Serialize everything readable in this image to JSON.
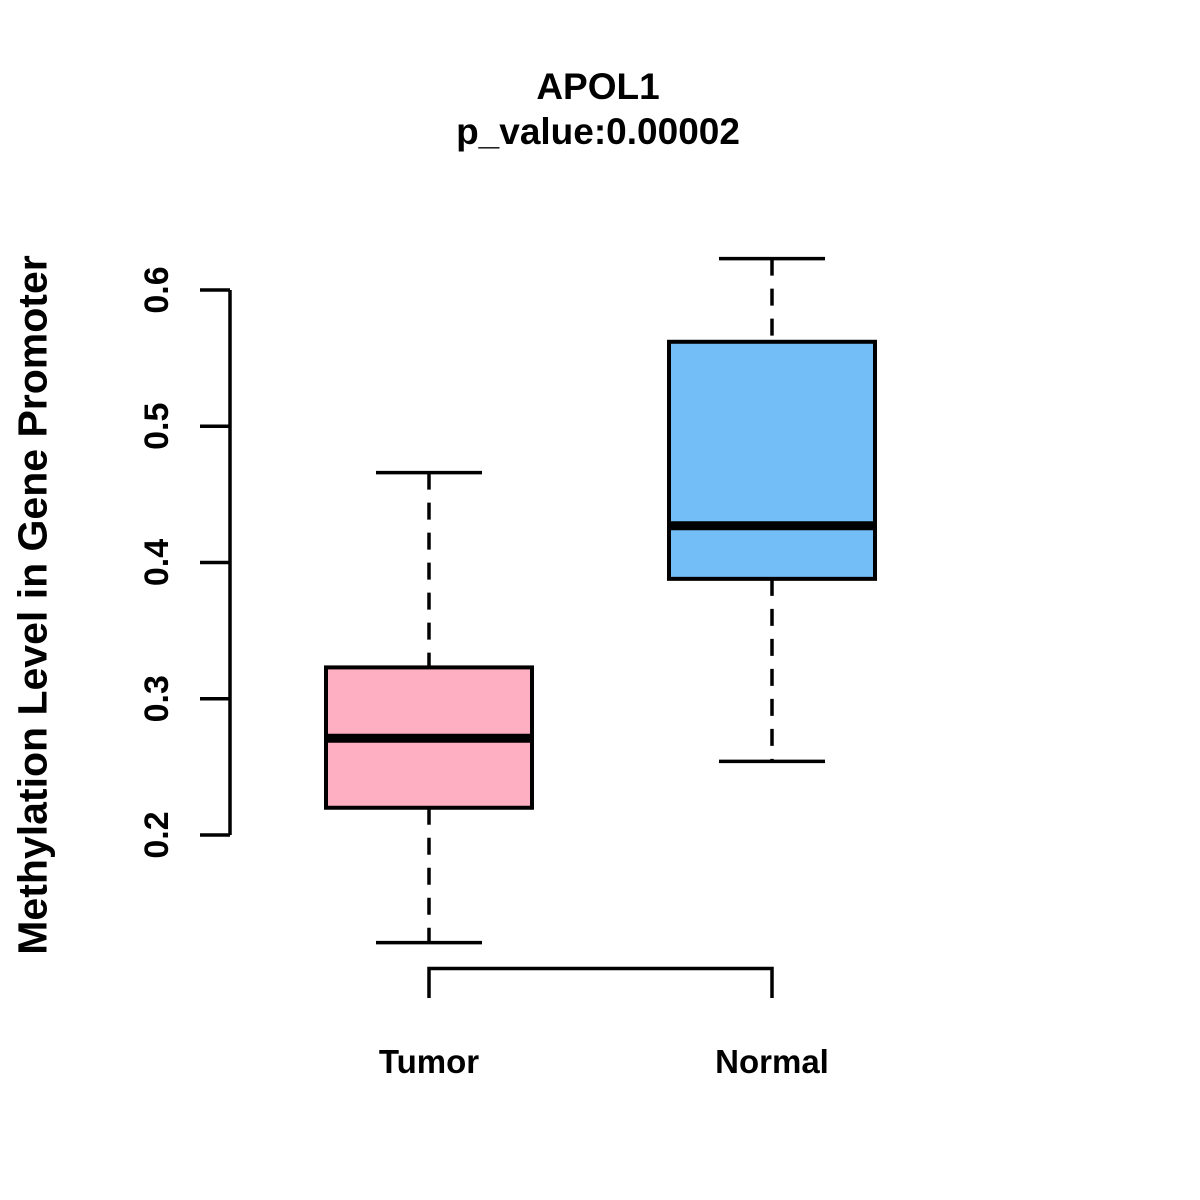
{
  "figure": {
    "title_line1": "APOL1",
    "title_line2": "p_value:0.00002",
    "y_axis_label": "Methylation Level in Gene Promoter"
  },
  "chart_data": {
    "type": "boxplot",
    "title": "APOL1",
    "subtitle": "p_value:0.00002",
    "ylabel": "Methylation Level in Gene Promoter",
    "xlabel": "",
    "categories": [
      "Tumor",
      "Normal"
    ],
    "y_axis": {
      "ticks": [
        0.2,
        0.3,
        0.4,
        0.5,
        0.6
      ],
      "tick_labels": [
        "0.2",
        "0.3",
        "0.4",
        "0.5",
        "0.6"
      ],
      "shown_range": [
        0.2,
        0.6
      ]
    },
    "grid": false,
    "legend_position": "none",
    "series": [
      {
        "name": "Tumor",
        "fill_color": "#ffafc2",
        "lower_whisker": 0.121,
        "q1": 0.22,
        "median": 0.271,
        "q3": 0.323,
        "upper_whisker": 0.466
      },
      {
        "name": "Normal",
        "fill_color": "#74bef7",
        "lower_whisker": 0.254,
        "q1": 0.388,
        "median": 0.427,
        "q3": 0.562,
        "upper_whisker": 0.623
      }
    ],
    "stroke_color": "#000000",
    "background_color": "#ffffff"
  }
}
